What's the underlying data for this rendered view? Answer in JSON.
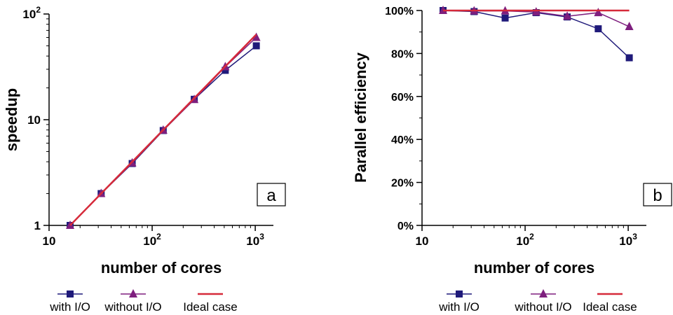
{
  "chart_data": [
    {
      "type": "line",
      "panel_label": "a",
      "xlabel": "number of cores",
      "ylabel": "speedup",
      "xscale": "log",
      "yscale": "log",
      "xlim": [
        10,
        1500
      ],
      "ylim": [
        1,
        100
      ],
      "x_ticks": [
        {
          "value": 10,
          "base": "10",
          "exp": ""
        },
        {
          "value": 100,
          "base": "10",
          "exp": "2"
        },
        {
          "value": 1000,
          "base": "10",
          "exp": "3"
        }
      ],
      "y_ticks": [
        {
          "value": 1,
          "base": "1",
          "exp": ""
        },
        {
          "value": 10,
          "base": "10",
          "exp": ""
        },
        {
          "value": 100,
          "base": "10",
          "exp": "2"
        }
      ],
      "x": [
        16,
        32,
        64,
        128,
        256,
        512,
        1024
      ],
      "series": [
        {
          "name": "with I/O",
          "marker": "square",
          "color": "#1f1a7a",
          "values": [
            1,
            2,
            3.85,
            7.9,
            15.6,
            29.3,
            50
          ]
        },
        {
          "name": "without I/O",
          "marker": "triangle",
          "color": "#7e1f7e",
          "values": [
            1,
            2,
            3.9,
            7.95,
            15.5,
            31.7,
            60
          ]
        },
        {
          "name": "Ideal case",
          "marker": "none",
          "color": "#d62a3a",
          "values": [
            1,
            2,
            4,
            8,
            16,
            32,
            64
          ]
        }
      ],
      "legend": "bottom"
    },
    {
      "type": "line",
      "panel_label": "b",
      "xlabel": "number of cores",
      "ylabel": "Parallel efficiency",
      "xscale": "log",
      "xlim": [
        10,
        1500
      ],
      "ylim": [
        0,
        100
      ],
      "x_ticks": [
        {
          "value": 10,
          "base": "10",
          "exp": ""
        },
        {
          "value": 100,
          "base": "10",
          "exp": "2"
        },
        {
          "value": 1000,
          "base": "10",
          "exp": "3"
        }
      ],
      "y_ticks": [
        {
          "value": 0,
          "label": "0%"
        },
        {
          "value": 20,
          "label": "20%"
        },
        {
          "value": 40,
          "label": "40%"
        },
        {
          "value": 60,
          "label": "60%"
        },
        {
          "value": 80,
          "label": "80%"
        },
        {
          "value": 100,
          "label": "100%"
        }
      ],
      "x": [
        16,
        32,
        64,
        128,
        256,
        512,
        1024
      ],
      "series": [
        {
          "name": "with I/O",
          "marker": "square",
          "color": "#1f1a7a",
          "values": [
            100,
            99.5,
            96.5,
            99,
            97,
            91.5,
            78
          ]
        },
        {
          "name": "without I/O",
          "marker": "triangle",
          "color": "#7e1f7e",
          "values": [
            100,
            99.8,
            99.8,
            99.3,
            97.3,
            99,
            92.5
          ]
        },
        {
          "name": "Ideal case",
          "marker": "none",
          "color": "#d62a3a",
          "values": [
            100,
            100,
            100,
            100,
            100,
            100,
            100
          ]
        }
      ],
      "legend": "bottom"
    }
  ]
}
